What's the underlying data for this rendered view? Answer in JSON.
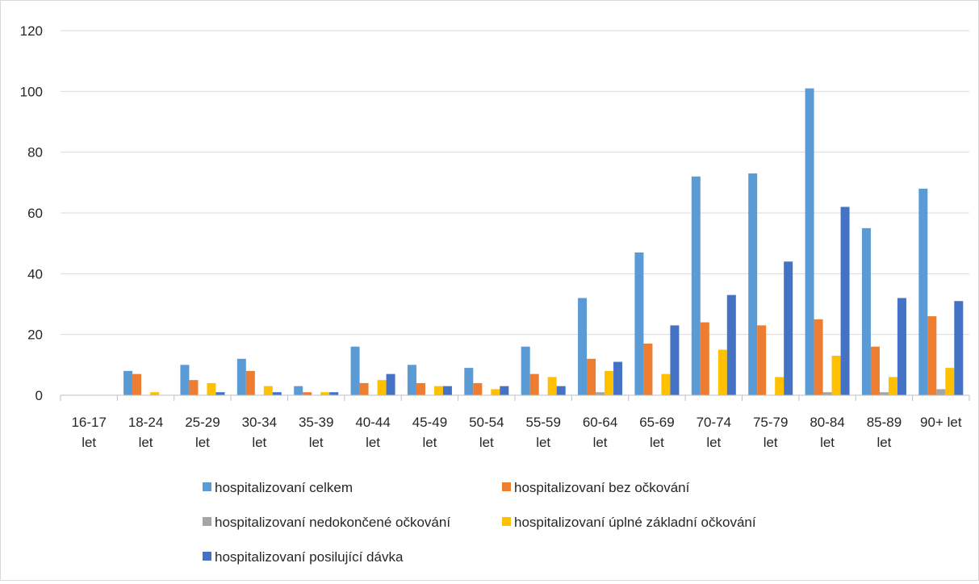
{
  "chart_data": {
    "type": "bar",
    "title": "",
    "xlabel": "",
    "ylabel": "",
    "ylim": [
      0,
      120
    ],
    "yticks": [
      "0",
      "20",
      "40",
      "60",
      "80",
      "100",
      "120"
    ],
    "grid": true,
    "legend_position": "bottom",
    "categories": [
      [
        "16-17",
        "let"
      ],
      [
        "18-24",
        "let"
      ],
      [
        "25-29",
        "let"
      ],
      [
        "30-34",
        "let"
      ],
      [
        "35-39",
        "let"
      ],
      [
        "40-44",
        "let"
      ],
      [
        "45-49",
        "let"
      ],
      [
        "50-54",
        "let"
      ],
      [
        "55-59",
        "let"
      ],
      [
        "60-64",
        "let"
      ],
      [
        "65-69",
        "let"
      ],
      [
        "70-74",
        "let"
      ],
      [
        "75-79",
        "let"
      ],
      [
        "80-84",
        "let"
      ],
      [
        "85-89",
        "let"
      ],
      [
        "90+ let"
      ]
    ],
    "series": [
      {
        "name": "hospitalizovaní celkem",
        "color": "#5b9bd5",
        "values": [
          0,
          8,
          10,
          12,
          3,
          16,
          10,
          9,
          16,
          32,
          47,
          72,
          73,
          101,
          55,
          68
        ]
      },
      {
        "name": "hospitalizovaní bez očkování",
        "color": "#ed7d31",
        "values": [
          0,
          7,
          5,
          8,
          1,
          4,
          4,
          4,
          7,
          12,
          17,
          24,
          23,
          25,
          16,
          26
        ]
      },
      {
        "name": "hospitalizovaní nedokončené očkování",
        "color": "#a5a5a5",
        "values": [
          0,
          0,
          0,
          0,
          0,
          0,
          0,
          0,
          0,
          1,
          0,
          0,
          0,
          1,
          1,
          2
        ]
      },
      {
        "name": "hospitalizovaní úplné základní očkování",
        "color": "#ffc000",
        "values": [
          0,
          1,
          4,
          3,
          1,
          5,
          3,
          2,
          6,
          8,
          7,
          15,
          6,
          13,
          6,
          9
        ]
      },
      {
        "name": "hospitalizovaní posilující dávka",
        "color": "#4472c4",
        "values": [
          0,
          0,
          1,
          1,
          1,
          7,
          3,
          3,
          3,
          11,
          23,
          33,
          44,
          62,
          32,
          31
        ]
      }
    ]
  }
}
